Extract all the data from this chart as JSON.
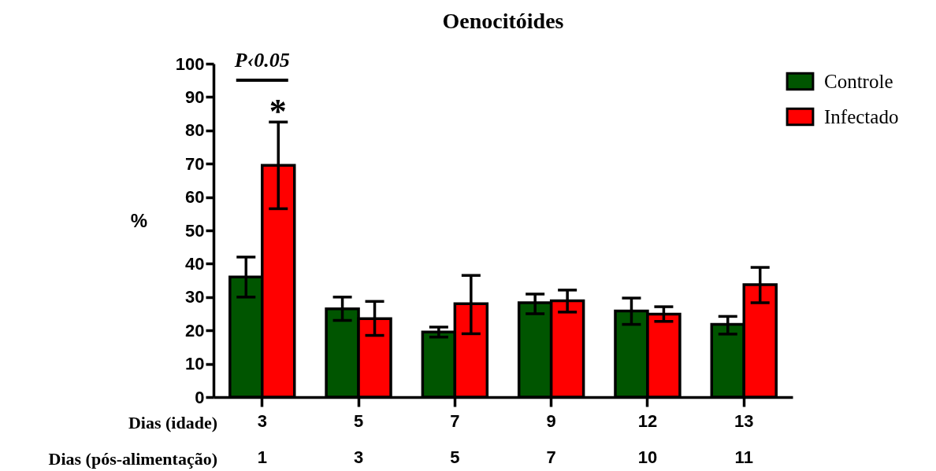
{
  "chart_data": {
    "type": "bar",
    "title": "Oenocitóides",
    "ylabel": "%",
    "xlabel": "Dias (idade)",
    "categories": [
      "3\n1",
      "5\n3",
      "7\n5",
      "9\n7",
      "12\n10",
      "13\n11"
    ],
    "series": [
      {
        "name": "Controle",
        "color": "#005500",
        "values": [
          36,
          26.5,
          19.5,
          28.3,
          25.8,
          21.8
        ],
        "errors": [
          [
            30,
            42
          ],
          [
            23,
            30
          ],
          [
            18,
            21
          ],
          [
            25,
            30.9
          ],
          [
            21.8,
            29.7
          ],
          [
            18.9,
            24.2
          ]
        ]
      },
      {
        "name": "Infectado",
        "color": "#ff0000",
        "values": [
          69.5,
          23.5,
          28,
          28.9,
          24.9,
          33.7
        ],
        "errors": [
          [
            56.5,
            82.5
          ],
          [
            18.5,
            28.7
          ],
          [
            19,
            36.5
          ],
          [
            25.5,
            32.1
          ],
          [
            22.7,
            27.1
          ],
          [
            28.3,
            38.9
          ]
        ]
      }
    ],
    "ylim": [
      0,
      100
    ],
    "yticks": [
      0,
      10,
      20,
      30,
      40,
      50,
      60,
      70,
      80,
      90,
      100
    ],
    "grid": false,
    "legend": "top right",
    "annotations": [
      "Dias (pós-alimentação)",
      "P‹0.05",
      "*"
    ]
  }
}
